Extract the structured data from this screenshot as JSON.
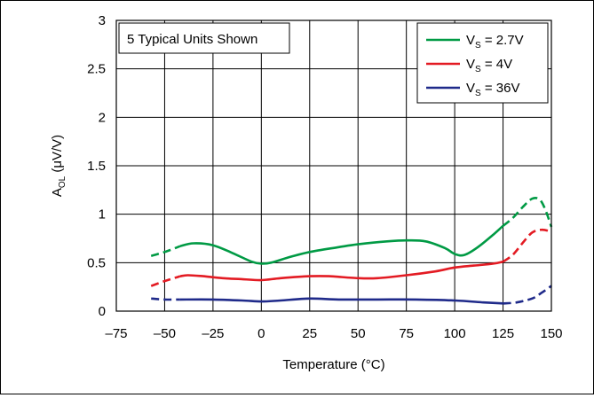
{
  "chart_data": {
    "type": "line",
    "xlabel": "Temperature (°C)",
    "ylabel": {
      "main": "A",
      "sub": "OL",
      "rest": " (μV/V)"
    },
    "xlim": [
      -75,
      150
    ],
    "ylim": [
      0,
      3
    ],
    "x_ticks": [
      -75,
      -50,
      -25,
      0,
      25,
      50,
      75,
      100,
      125,
      150
    ],
    "x_tick_labels": [
      "–75",
      "–50",
      "–25",
      "0",
      "25",
      "50",
      "75",
      "100",
      "125",
      "150"
    ],
    "y_ticks": [
      0,
      0.5,
      1,
      1.5,
      2,
      2.5,
      3
    ],
    "y_tick_labels": [
      "0",
      "0.5",
      "1",
      "1.5",
      "2",
      "2.5",
      "3"
    ],
    "grid": true,
    "annotation": "5 Typical Units Shown",
    "legend_position": "top-right",
    "series": [
      {
        "name": "VS = 2.7V",
        "label": {
          "main": "V",
          "sub": "S",
          "rest": " = 2.7V"
        },
        "color": "#009a44",
        "dashed_low": [
          [
            -57,
            0.57
          ],
          [
            -50,
            0.61
          ],
          [
            -42,
            0.67
          ]
        ],
        "solid": [
          [
            -42,
            0.67
          ],
          [
            -35,
            0.7
          ],
          [
            -25,
            0.68
          ],
          [
            -15,
            0.6
          ],
          [
            -5,
            0.51
          ],
          [
            0,
            0.49
          ],
          [
            5,
            0.5
          ],
          [
            15,
            0.56
          ],
          [
            25,
            0.61
          ],
          [
            40,
            0.66
          ],
          [
            50,
            0.69
          ],
          [
            65,
            0.72
          ],
          [
            75,
            0.73
          ],
          [
            85,
            0.72
          ],
          [
            95,
            0.65
          ],
          [
            100,
            0.59
          ],
          [
            105,
            0.58
          ],
          [
            112,
            0.66
          ],
          [
            120,
            0.79
          ],
          [
            125,
            0.88
          ]
        ],
        "dashed_high": [
          [
            125,
            0.88
          ],
          [
            130,
            0.96
          ],
          [
            135,
            1.07
          ],
          [
            140,
            1.16
          ],
          [
            144,
            1.15
          ],
          [
            147,
            1.04
          ],
          [
            150,
            0.87
          ]
        ]
      },
      {
        "name": "VS = 4V",
        "label": {
          "main": "V",
          "sub": "S",
          "rest": " = 4V"
        },
        "color": "#e31b23",
        "dashed_low": [
          [
            -57,
            0.26
          ],
          [
            -50,
            0.31
          ],
          [
            -42,
            0.36
          ]
        ],
        "solid": [
          [
            -42,
            0.36
          ],
          [
            -38,
            0.37
          ],
          [
            -30,
            0.36
          ],
          [
            -20,
            0.34
          ],
          [
            -10,
            0.33
          ],
          [
            0,
            0.32
          ],
          [
            10,
            0.34
          ],
          [
            25,
            0.36
          ],
          [
            35,
            0.36
          ],
          [
            50,
            0.34
          ],
          [
            60,
            0.34
          ],
          [
            75,
            0.37
          ],
          [
            90,
            0.41
          ],
          [
            100,
            0.45
          ],
          [
            110,
            0.47
          ],
          [
            120,
            0.49
          ],
          [
            125,
            0.51
          ]
        ],
        "dashed_high": [
          [
            125,
            0.51
          ],
          [
            130,
            0.58
          ],
          [
            135,
            0.7
          ],
          [
            140,
            0.81
          ],
          [
            145,
            0.84
          ],
          [
            150,
            0.82
          ]
        ]
      },
      {
        "name": "VS = 36V",
        "label": {
          "main": "V",
          "sub": "S",
          "rest": " = 36V"
        },
        "color": "#1f2a8a",
        "dashed_low": [
          [
            -57,
            0.13
          ],
          [
            -50,
            0.12
          ],
          [
            -42,
            0.12
          ]
        ],
        "solid": [
          [
            -42,
            0.12
          ],
          [
            -25,
            0.12
          ],
          [
            -10,
            0.11
          ],
          [
            0,
            0.1
          ],
          [
            10,
            0.11
          ],
          [
            25,
            0.13
          ],
          [
            40,
            0.12
          ],
          [
            60,
            0.12
          ],
          [
            80,
            0.12
          ],
          [
            100,
            0.11
          ],
          [
            115,
            0.09
          ],
          [
            125,
            0.08
          ]
        ],
        "dashed_high": [
          [
            125,
            0.08
          ],
          [
            132,
            0.09
          ],
          [
            140,
            0.13
          ],
          [
            145,
            0.19
          ],
          [
            150,
            0.26
          ]
        ]
      }
    ]
  }
}
